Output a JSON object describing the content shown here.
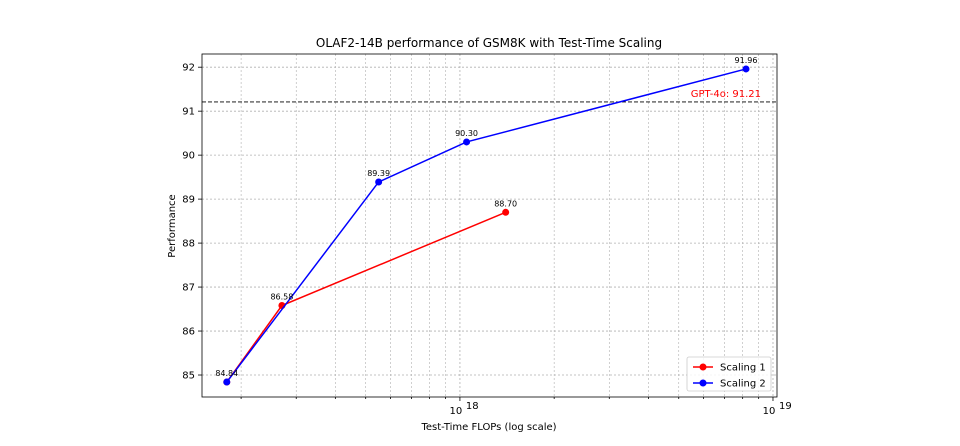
{
  "chart_data": {
    "type": "line",
    "title": "OLAF2-14B performance of GSM8K with Test-Time Scaling",
    "xlabel": "Test-Time FLOPs (log scale)",
    "ylabel": "Performance",
    "xscale": "log",
    "xlim": [
      1.5e+17,
      1.03e+19
    ],
    "ylim": [
      84.5,
      92.3
    ],
    "x_tick_labels": [
      {
        "value": 1e+18,
        "base": "10",
        "exp": "18"
      },
      {
        "value": 1e+19,
        "base": "10",
        "exp": "19"
      }
    ],
    "y_ticks": [
      85,
      86,
      87,
      88,
      89,
      90,
      91,
      92
    ],
    "grid": true,
    "legend_position": "bottom-right",
    "series": [
      {
        "name": "Scaling 1",
        "color": "#ff0000",
        "x": [
          1.8e+17,
          2.7e+17,
          1.4e+18
        ],
        "y": [
          84.84,
          86.58,
          88.7
        ],
        "labels": [
          "84.84",
          "86.58",
          "88.70"
        ]
      },
      {
        "name": "Scaling 2",
        "color": "#0000ff",
        "x": [
          1.8e+17,
          5.5e+17,
          1.05e+18,
          8.2e+18
        ],
        "y": [
          84.84,
          89.39,
          90.3,
          91.96
        ],
        "labels": [
          "",
          "89.39",
          "90.30",
          "91.96"
        ]
      }
    ],
    "reference_line": {
      "value": 91.21,
      "label": "GPT-4o: 91.21",
      "color": "#ff0000"
    }
  }
}
